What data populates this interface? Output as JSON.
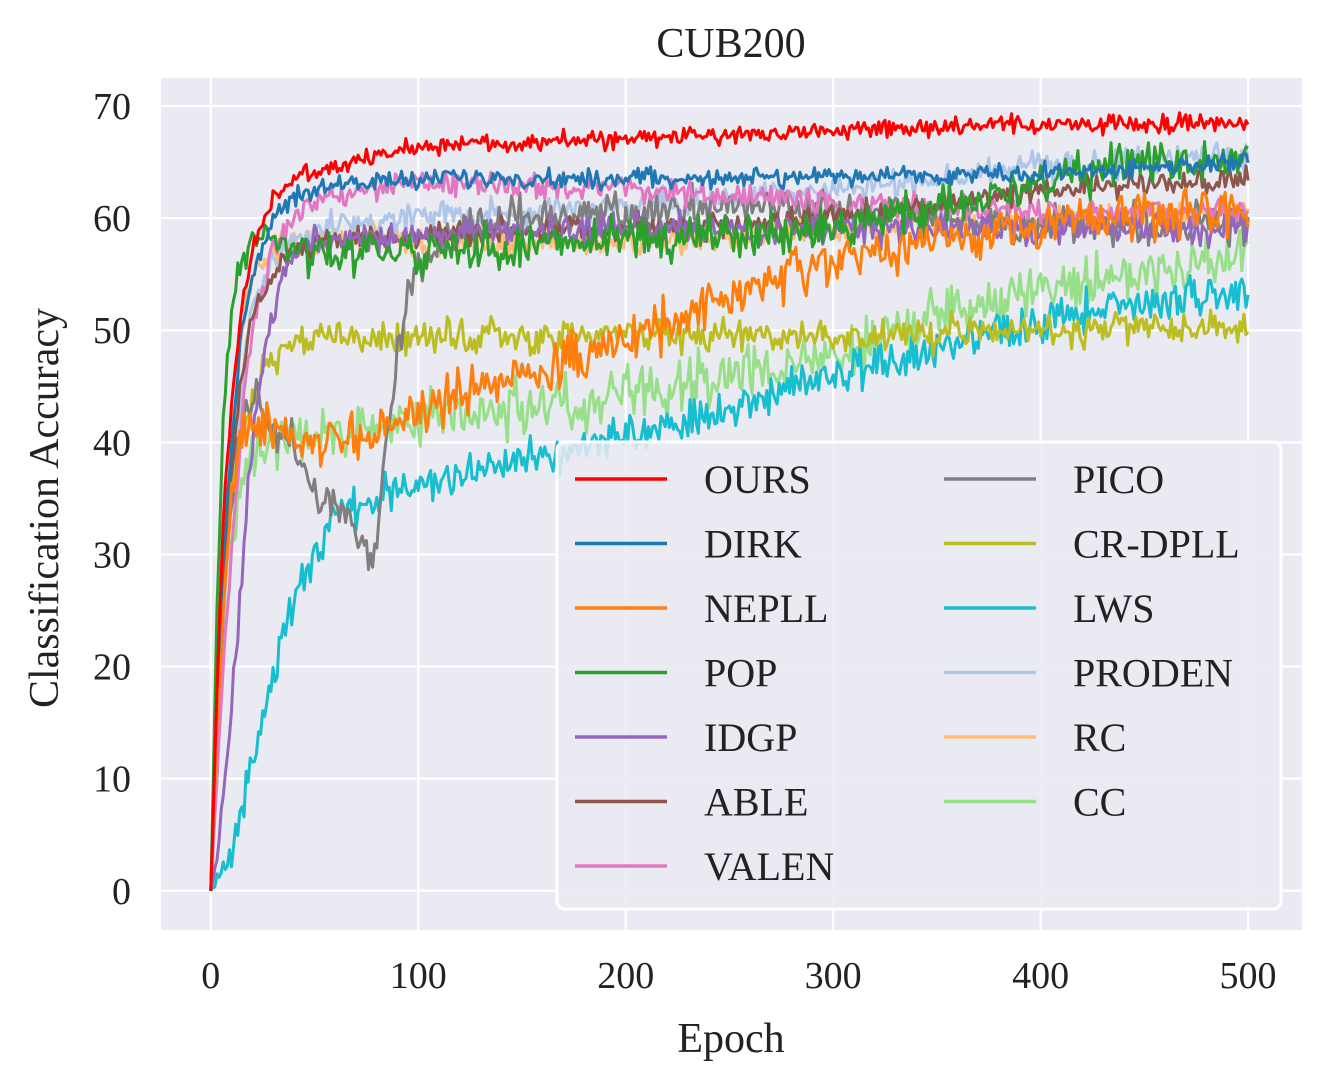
{
  "chart_data": {
    "type": "line",
    "title": "CUB200",
    "xlabel": "Epoch",
    "ylabel": "Classification Accuracy",
    "xlim": [
      -24,
      526
    ],
    "ylim": [
      -3.5,
      72.5
    ],
    "xticks": [
      0,
      100,
      200,
      300,
      400,
      500
    ],
    "yticks": [
      0,
      10,
      20,
      30,
      40,
      50,
      60,
      70
    ],
    "grid": true,
    "legend_position": "lower-right",
    "legend_columns": 2,
    "series": [
      {
        "name": "OURS",
        "color": "#ff0000",
        "noise": 0.6,
        "points": [
          [
            0,
            0
          ],
          [
            3,
            18
          ],
          [
            6,
            33
          ],
          [
            10,
            44
          ],
          [
            15,
            52
          ],
          [
            20,
            57
          ],
          [
            30,
            62
          ],
          [
            40,
            63.5
          ],
          [
            60,
            64.5
          ],
          [
            80,
            65.5
          ],
          [
            100,
            66.5
          ],
          [
            150,
            66.8
          ],
          [
            200,
            67
          ],
          [
            250,
            67.5
          ],
          [
            300,
            67.8
          ],
          [
            350,
            68.1
          ],
          [
            400,
            68.3
          ],
          [
            450,
            68.4
          ],
          [
            500,
            68.6
          ]
        ]
      },
      {
        "name": "DIRK",
        "color": "#1f77b4",
        "noise": 0.6,
        "points": [
          [
            0,
            0
          ],
          [
            3,
            18
          ],
          [
            6,
            30
          ],
          [
            10,
            40
          ],
          [
            15,
            50
          ],
          [
            20,
            55
          ],
          [
            30,
            60
          ],
          [
            40,
            62
          ],
          [
            60,
            63
          ],
          [
            100,
            63.5
          ],
          [
            200,
            63.5
          ],
          [
            300,
            63.7
          ],
          [
            400,
            64
          ],
          [
            450,
            64.5
          ],
          [
            500,
            65
          ]
        ]
      },
      {
        "name": "NEPLL",
        "color": "#ff7f0e",
        "noise": 1.5,
        "points": [
          [
            0,
            0
          ],
          [
            3,
            15
          ],
          [
            6,
            25
          ],
          [
            10,
            35
          ],
          [
            15,
            40
          ],
          [
            20,
            42
          ],
          [
            30,
            41
          ],
          [
            40,
            40
          ],
          [
            60,
            40
          ],
          [
            80,
            41
          ],
          [
            100,
            43
          ],
          [
            150,
            46
          ],
          [
            200,
            49
          ],
          [
            250,
            53
          ],
          [
            300,
            56
          ],
          [
            350,
            58
          ],
          [
            400,
            59.5
          ],
          [
            450,
            60.5
          ],
          [
            500,
            61
          ]
        ]
      },
      {
        "name": "POP",
        "color": "#2ca02c",
        "noise": 1.3,
        "points": [
          [
            0,
            0
          ],
          [
            3,
            25
          ],
          [
            6,
            42
          ],
          [
            10,
            52
          ],
          [
            15,
            56
          ],
          [
            20,
            58
          ],
          [
            30,
            58
          ],
          [
            50,
            57
          ],
          [
            100,
            57
          ],
          [
            200,
            58
          ],
          [
            300,
            59
          ],
          [
            350,
            61
          ],
          [
            400,
            63
          ],
          [
            450,
            65
          ],
          [
            500,
            65.5
          ]
        ]
      },
      {
        "name": "IDGP",
        "color": "#9467bd",
        "noise": 1.0,
        "points": [
          [
            0,
            0
          ],
          [
            3,
            3
          ],
          [
            6,
            8
          ],
          [
            10,
            16
          ],
          [
            15,
            28
          ],
          [
            20,
            40
          ],
          [
            25,
            47
          ],
          [
            30,
            52
          ],
          [
            35,
            55
          ],
          [
            40,
            57
          ],
          [
            60,
            58
          ],
          [
            100,
            58.5
          ],
          [
            200,
            59
          ],
          [
            300,
            59
          ],
          [
            400,
            59
          ],
          [
            500,
            59
          ]
        ]
      },
      {
        "name": "ABLE",
        "color": "#8c564b",
        "noise": 0.8,
        "points": [
          [
            0,
            0
          ],
          [
            3,
            15
          ],
          [
            6,
            28
          ],
          [
            10,
            38
          ],
          [
            15,
            46
          ],
          [
            20,
            51
          ],
          [
            30,
            55
          ],
          [
            40,
            57
          ],
          [
            60,
            58
          ],
          [
            100,
            58.5
          ],
          [
            200,
            59
          ],
          [
            300,
            60
          ],
          [
            350,
            61
          ],
          [
            400,
            62.5
          ],
          [
            450,
            63
          ],
          [
            500,
            63.5
          ]
        ]
      },
      {
        "name": "VALEN",
        "color": "#e377c2",
        "noise": 0.8,
        "points": [
          [
            0,
            0
          ],
          [
            3,
            10
          ],
          [
            6,
            20
          ],
          [
            10,
            30
          ],
          [
            15,
            42
          ],
          [
            20,
            50
          ],
          [
            30,
            57
          ],
          [
            40,
            60
          ],
          [
            60,
            62
          ],
          [
            100,
            63
          ],
          [
            150,
            63
          ],
          [
            200,
            62.5
          ],
          [
            250,
            62
          ],
          [
            300,
            61.5
          ],
          [
            350,
            61
          ],
          [
            400,
            60.5
          ],
          [
            450,
            60.5
          ],
          [
            500,
            60.5
          ]
        ]
      },
      {
        "name": "PICO",
        "color": "#7f7f7f",
        "noise": 1.3,
        "points": [
          [
            0,
            0
          ],
          [
            3,
            10
          ],
          [
            6,
            25
          ],
          [
            10,
            35
          ],
          [
            15,
            42
          ],
          [
            20,
            44
          ],
          [
            30,
            42
          ],
          [
            40,
            40
          ],
          [
            50,
            36
          ],
          [
            60,
            34
          ],
          [
            70,
            32
          ],
          [
            78,
            30
          ],
          [
            80,
            31
          ],
          [
            85,
            40
          ],
          [
            90,
            48
          ],
          [
            95,
            53
          ],
          [
            100,
            56
          ],
          [
            120,
            59
          ],
          [
            150,
            60
          ],
          [
            200,
            60.5
          ],
          [
            250,
            61
          ],
          [
            300,
            60.5
          ],
          [
            350,
            60
          ],
          [
            400,
            59.5
          ],
          [
            450,
            59.5
          ],
          [
            500,
            59.5
          ]
        ]
      },
      {
        "name": "CR-DPLL",
        "color": "#bcbd22",
        "noise": 1.1,
        "points": [
          [
            0,
            0
          ],
          [
            3,
            12
          ],
          [
            6,
            25
          ],
          [
            10,
            35
          ],
          [
            15,
            40
          ],
          [
            20,
            44
          ],
          [
            25,
            46
          ],
          [
            30,
            47.5
          ],
          [
            40,
            49
          ],
          [
            60,
            49.5
          ],
          [
            100,
            49.5
          ],
          [
            200,
            49.5
          ],
          [
            300,
            49.5
          ],
          [
            400,
            50
          ],
          [
            500,
            50.5
          ]
        ]
      },
      {
        "name": "LWS",
        "color": "#17becf",
        "noise": 1.3,
        "points": [
          [
            0,
            0
          ],
          [
            3,
            1
          ],
          [
            6,
            2
          ],
          [
            10,
            4
          ],
          [
            15,
            7
          ],
          [
            20,
            11
          ],
          [
            25,
            15
          ],
          [
            30,
            19
          ],
          [
            35,
            23
          ],
          [
            40,
            26
          ],
          [
            45,
            28
          ],
          [
            50,
            30
          ],
          [
            55,
            32
          ],
          [
            60,
            33.5
          ],
          [
            80,
            35
          ],
          [
            100,
            36.5
          ],
          [
            150,
            38.5
          ],
          [
            200,
            40.5
          ],
          [
            250,
            43
          ],
          [
            300,
            46
          ],
          [
            350,
            48.5
          ],
          [
            400,
            51
          ],
          [
            450,
            52.5
          ],
          [
            500,
            53.5
          ]
        ]
      },
      {
        "name": "PRODEN",
        "color": "#aec7e8",
        "noise": 0.9,
        "points": [
          [
            0,
            0
          ],
          [
            3,
            12
          ],
          [
            6,
            24
          ],
          [
            10,
            35
          ],
          [
            15,
            45
          ],
          [
            20,
            52
          ],
          [
            30,
            56
          ],
          [
            40,
            58
          ],
          [
            60,
            59.5
          ],
          [
            100,
            60
          ],
          [
            150,
            60.5
          ],
          [
            200,
            61
          ],
          [
            250,
            61.5
          ],
          [
            300,
            62.5
          ],
          [
            350,
            63.5
          ],
          [
            400,
            64.5
          ],
          [
            450,
            65
          ],
          [
            500,
            65.3
          ]
        ]
      },
      {
        "name": "RC",
        "color": "#ffbb78",
        "noise": 0.9,
        "points": [
          [
            0,
            0
          ],
          [
            3,
            14
          ],
          [
            6,
            28
          ],
          [
            10,
            40
          ],
          [
            15,
            50
          ],
          [
            20,
            55
          ],
          [
            30,
            57.5
          ],
          [
            40,
            58
          ],
          [
            100,
            58
          ],
          [
            200,
            58
          ],
          [
            300,
            59
          ],
          [
            400,
            60
          ],
          [
            500,
            60.5
          ]
        ]
      },
      {
        "name": "CC",
        "color": "#98df8a",
        "noise": 1.7,
        "points": [
          [
            0,
            0
          ],
          [
            3,
            12
          ],
          [
            6,
            22
          ],
          [
            10,
            30
          ],
          [
            15,
            36
          ],
          [
            20,
            39
          ],
          [
            30,
            40
          ],
          [
            50,
            41
          ],
          [
            100,
            42
          ],
          [
            150,
            43
          ],
          [
            200,
            44
          ],
          [
            250,
            46
          ],
          [
            300,
            48
          ],
          [
            350,
            51
          ],
          [
            400,
            53.5
          ],
          [
            450,
            55
          ],
          [
            500,
            56.5
          ]
        ]
      }
    ]
  }
}
